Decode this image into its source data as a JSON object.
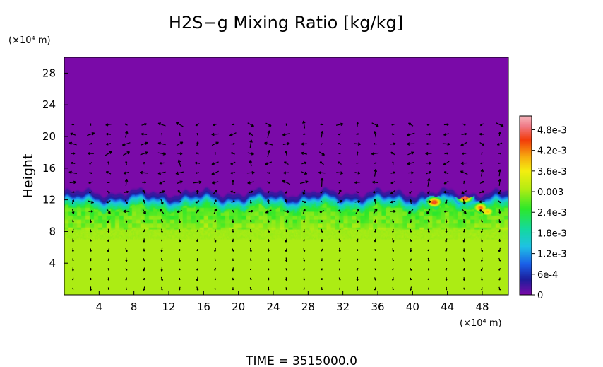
{
  "chart_data": {
    "type": "heatmap",
    "title": "H2S−g Mixing Ratio [kg/kg]",
    "ylabel": "Height",
    "x_unit_label": "(×10⁴ m)",
    "y_unit_label": "(×10⁴ m)",
    "xlim": [
      0,
      51
    ],
    "ylim": [
      0,
      30
    ],
    "x_ticks": [
      "4",
      "8",
      "12",
      "16",
      "20",
      "24",
      "28",
      "32",
      "36",
      "40",
      "44",
      "48"
    ],
    "y_ticks": [
      "4",
      "8",
      "12",
      "16",
      "20",
      "24",
      "28"
    ],
    "colorbar": {
      "range": [
        0,
        0.0052
      ],
      "labels": [
        "0",
        "6e-4",
        "1.2e-3",
        "1.8e-3",
        "2.4e-3",
        "0.003",
        "3.6e-3",
        "4.2e-3",
        "4.8e-3"
      ],
      "label_values": [
        0,
        0.0006,
        0.0012,
        0.0018,
        0.0024,
        0.003,
        0.0036,
        0.0042,
        0.0048
      ],
      "stops": [
        {
          "v": 0.0,
          "color": "#7a0aa8"
        },
        {
          "v": 0.00045,
          "color": "#1c1e9c"
        },
        {
          "v": 0.0009,
          "color": "#1a60e8"
        },
        {
          "v": 0.0014,
          "color": "#1fc2e4"
        },
        {
          "v": 0.0019,
          "color": "#14d9a0"
        },
        {
          "v": 0.0025,
          "color": "#2de82a"
        },
        {
          "v": 0.0031,
          "color": "#b8ec12"
        },
        {
          "v": 0.0036,
          "color": "#f4ee10"
        },
        {
          "v": 0.004,
          "color": "#f7ae0f"
        },
        {
          "v": 0.0045,
          "color": "#f23b0a"
        },
        {
          "v": 0.0049,
          "color": "#f07a86"
        },
        {
          "v": 0.0052,
          "color": "#f6b7bd"
        }
      ]
    },
    "field": {
      "background_value": 0.0,
      "lower_value": 0.00305,
      "interface_height": 12.5,
      "lower_uniform_below": 8.2,
      "hotspots": [
        {
          "x": 42.5,
          "y": 11.7,
          "value": 0.0046
        },
        {
          "x": 46.0,
          "y": 12.3,
          "value": 0.0048
        },
        {
          "x": 47.8,
          "y": 11.0,
          "value": 0.0042
        },
        {
          "x": 48.6,
          "y": 10.5,
          "value": 0.0038
        }
      ]
    },
    "vectors": true,
    "time_label": "TIME  =  3515000.0"
  }
}
